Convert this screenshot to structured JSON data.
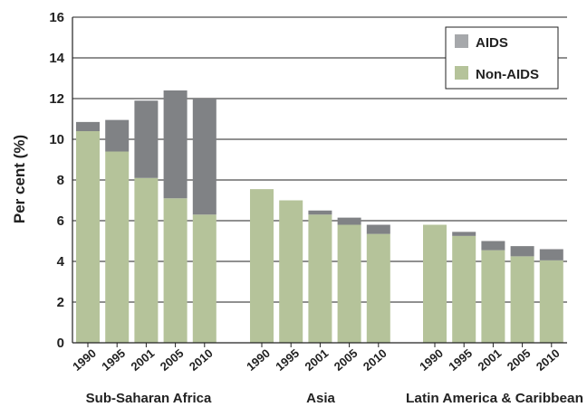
{
  "chart_data": {
    "type": "bar",
    "stacked": true,
    "ylabel": "Per cent (%)",
    "ylim": [
      0,
      16
    ],
    "yticks": [
      0,
      2,
      4,
      6,
      8,
      10,
      12,
      14,
      16
    ],
    "grid": true,
    "legend_position": "top-right",
    "groups": [
      {
        "name": "Sub-Saharan Africa",
        "years": [
          "1990",
          "1995",
          "2001",
          "2005",
          "2010"
        ]
      },
      {
        "name": "Asia",
        "years": [
          "1990",
          "1995",
          "2001",
          "2005",
          "2010"
        ]
      },
      {
        "name": "Latin America & Caribbean",
        "years": [
          "1990",
          "1995",
          "2001",
          "2005",
          "2010"
        ]
      }
    ],
    "series": [
      {
        "name": "Non-AIDS",
        "color": "#b5c39a",
        "values": [
          [
            10.4,
            9.4,
            8.1,
            7.1,
            6.3
          ],
          [
            7.55,
            7.0,
            6.3,
            5.8,
            5.35
          ],
          [
            5.8,
            5.25,
            4.55,
            4.25,
            4.05
          ]
        ]
      },
      {
        "name": "AIDS",
        "color": "#808285",
        "values": [
          [
            0.45,
            1.55,
            3.8,
            5.3,
            5.7
          ],
          [
            0,
            0,
            0.2,
            0.35,
            0.45
          ],
          [
            0,
            0.2,
            0.45,
            0.5,
            0.55
          ]
        ]
      }
    ],
    "legend": [
      {
        "name": "AIDS",
        "color": "#a6a8ab"
      },
      {
        "name": "Non-AIDS",
        "color": "#b5c39a"
      }
    ]
  }
}
